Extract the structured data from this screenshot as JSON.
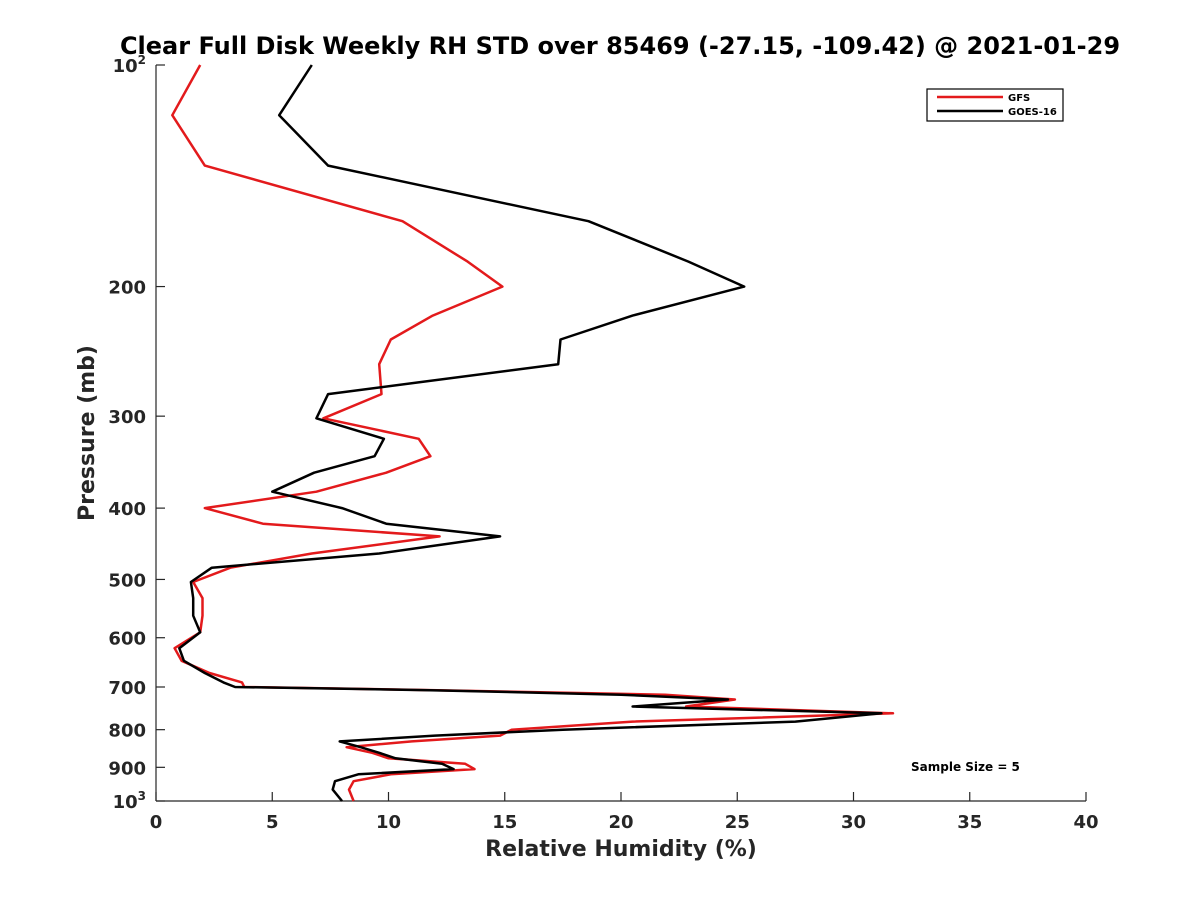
{
  "chart_data": {
    "type": "line",
    "title": "Clear Full Disk Weekly RH STD over 85469 (-27.15, -109.42) @ 2021-01-29",
    "xlabel": "Relative Humidity (%)",
    "ylabel": "Pressure (mb)",
    "xlim": [
      0,
      40
    ],
    "ylim": [
      100,
      1000
    ],
    "yscale": "log",
    "y_reversed": true,
    "grid": false,
    "legend_position": "top-right",
    "x_ticks": [
      {
        "value": 0,
        "label": "0"
      },
      {
        "value": 5,
        "label": "5"
      },
      {
        "value": 10,
        "label": "10"
      },
      {
        "value": 15,
        "label": "15"
      },
      {
        "value": 20,
        "label": "20"
      },
      {
        "value": 25,
        "label": "25"
      },
      {
        "value": 30,
        "label": "30"
      },
      {
        "value": 35,
        "label": "35"
      },
      {
        "value": 40,
        "label": "40"
      }
    ],
    "y_ticks": [
      {
        "value": 100,
        "base": "10",
        "exp": "2"
      },
      {
        "value": 200,
        "base": "200",
        "exp": ""
      },
      {
        "value": 300,
        "base": "300",
        "exp": ""
      },
      {
        "value": 400,
        "base": "400",
        "exp": ""
      },
      {
        "value": 500,
        "base": "500",
        "exp": ""
      },
      {
        "value": 600,
        "base": "600",
        "exp": ""
      },
      {
        "value": 700,
        "base": "700",
        "exp": ""
      },
      {
        "value": 800,
        "base": "800",
        "exp": ""
      },
      {
        "value": 900,
        "base": "900",
        "exp": ""
      },
      {
        "value": 1000,
        "base": "10",
        "exp": "3"
      }
    ],
    "annotation": "Sample Size = 5",
    "series": [
      {
        "name": "GFS",
        "color": "#e31a1c",
        "points": [
          [
            1.9,
            100
          ],
          [
            0.7,
            117
          ],
          [
            2.1,
            137
          ],
          [
            10.6,
            163
          ],
          [
            13.4,
            185
          ],
          [
            14.9,
            200
          ],
          [
            11.9,
            219
          ],
          [
            10.1,
            236
          ],
          [
            9.6,
            255
          ],
          [
            9.7,
            280
          ],
          [
            7.2,
            302
          ],
          [
            11.3,
            322
          ],
          [
            11.8,
            340
          ],
          [
            9.9,
            358
          ],
          [
            6.9,
            380
          ],
          [
            2.1,
            400
          ],
          [
            4.6,
            420
          ],
          [
            12.2,
            437
          ],
          [
            6.7,
            461
          ],
          [
            3.2,
            482
          ],
          [
            1.6,
            504
          ],
          [
            2.0,
            530
          ],
          [
            2.0,
            560
          ],
          [
            1.9,
            590
          ],
          [
            0.8,
            620
          ],
          [
            1.1,
            645
          ],
          [
            2.3,
            670
          ],
          [
            3.7,
            690
          ],
          [
            3.8,
            700
          ],
          [
            12.1,
            707
          ],
          [
            21.9,
            717
          ],
          [
            24.9,
            728
          ],
          [
            22.8,
            744
          ],
          [
            31.7,
            760
          ],
          [
            20.5,
            780
          ],
          [
            15.3,
            800
          ],
          [
            14.8,
            815
          ],
          [
            11.0,
            830
          ],
          [
            8.2,
            845
          ],
          [
            9.3,
            860
          ],
          [
            10.0,
            875
          ],
          [
            13.3,
            890
          ],
          [
            13.7,
            905
          ],
          [
            10.1,
            920
          ],
          [
            8.5,
            940
          ],
          [
            8.3,
            965
          ],
          [
            8.5,
            1000
          ]
        ]
      },
      {
        "name": "GOES-16",
        "color": "#000000",
        "points": [
          [
            6.7,
            100
          ],
          [
            5.3,
            117
          ],
          [
            7.4,
            137
          ],
          [
            18.6,
            163
          ],
          [
            22.9,
            185
          ],
          [
            25.3,
            200
          ],
          [
            20.5,
            219
          ],
          [
            17.4,
            236
          ],
          [
            17.3,
            255
          ],
          [
            7.4,
            280
          ],
          [
            6.9,
            302
          ],
          [
            9.8,
            322
          ],
          [
            9.4,
            340
          ],
          [
            6.8,
            358
          ],
          [
            5.0,
            380
          ],
          [
            8.0,
            400
          ],
          [
            9.9,
            420
          ],
          [
            14.8,
            437
          ],
          [
            9.6,
            461
          ],
          [
            2.4,
            482
          ],
          [
            1.5,
            504
          ],
          [
            1.6,
            530
          ],
          [
            1.6,
            560
          ],
          [
            1.9,
            590
          ],
          [
            1.0,
            620
          ],
          [
            1.2,
            645
          ],
          [
            2.1,
            670
          ],
          [
            2.9,
            690
          ],
          [
            3.4,
            700
          ],
          [
            11.8,
            707
          ],
          [
            20.0,
            717
          ],
          [
            24.6,
            728
          ],
          [
            20.5,
            744
          ],
          [
            31.2,
            760
          ],
          [
            27.5,
            780
          ],
          [
            17.5,
            800
          ],
          [
            12.0,
            815
          ],
          [
            7.9,
            830
          ],
          [
            8.8,
            845
          ],
          [
            9.6,
            860
          ],
          [
            10.3,
            875
          ],
          [
            12.3,
            890
          ],
          [
            12.8,
            905
          ],
          [
            8.7,
            920
          ],
          [
            7.7,
            940
          ],
          [
            7.6,
            965
          ],
          [
            8.0,
            1000
          ]
        ]
      }
    ]
  }
}
